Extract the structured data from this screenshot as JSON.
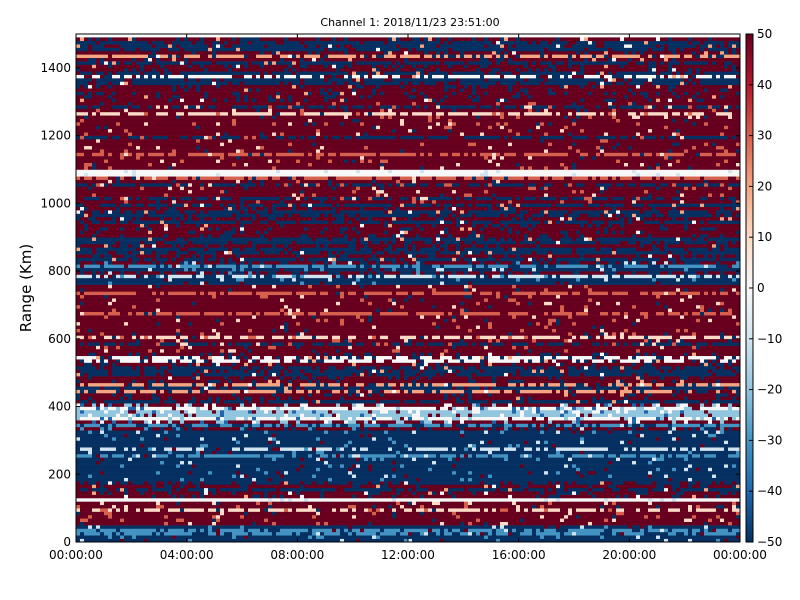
{
  "chart_data": {
    "type": "heatmap",
    "title": "Channel 1: 2018/11/23 23:51:00",
    "xlabel": "",
    "ylabel": "Range (Km)",
    "xlim": [
      "00:00:00",
      "00:00:00 (+24h)"
    ],
    "x_tick_labels": [
      "00:00:00",
      "04:00:00",
      "08:00:00",
      "12:00:00",
      "16:00:00",
      "20:00:00",
      "00:00:00"
    ],
    "ylim": [
      0,
      1500
    ],
    "y_tick_labels": [
      "0",
      "200",
      "400",
      "600",
      "800",
      "1000",
      "1200",
      "1400"
    ],
    "colorbar": {
      "range": [
        -50,
        50
      ],
      "ticks": [
        "50",
        "40",
        "30",
        "20",
        "10",
        "0",
        "−10",
        "−20",
        "−30",
        "−40",
        "−50"
      ],
      "colormap": "RdBu_r",
      "colors": [
        "#053061",
        "#2166ac",
        "#4393c3",
        "#92c5de",
        "#d1e5f0",
        "#f7f7f7",
        "#fddbc7",
        "#f4a582",
        "#d6604d",
        "#b2182b",
        "#67001f"
      ]
    },
    "notes_range_bands": [
      {
        "range_km": [
          0,
          50
        ],
        "dominant": "blue"
      },
      {
        "range_km": [
          50,
          120
        ],
        "dominant": "red"
      },
      {
        "range_km": [
          130,
          180
        ],
        "dominant": "blue/red mix"
      },
      {
        "range_km": [
          180,
          350
        ],
        "dominant": "blue"
      },
      {
        "range_km": [
          350,
          410
        ],
        "dominant": "light blue / white"
      },
      {
        "range_km": [
          410,
          560
        ],
        "dominant": "blue/red mix"
      },
      {
        "range_km": [
          560,
          760
        ],
        "dominant": "red"
      },
      {
        "range_km": [
          760,
          830
        ],
        "dominant": "blue"
      },
      {
        "range_km": [
          830,
          1000
        ],
        "dominant": "red/blue mix"
      },
      {
        "range_km": [
          1000,
          1080
        ],
        "dominant": "red"
      },
      {
        "range_km": [
          1080,
          1100
        ],
        "dominant": "white"
      },
      {
        "range_km": [
          1100,
          1300
        ],
        "dominant": "red"
      },
      {
        "range_km": [
          1300,
          1490
        ],
        "dominant": "red/blue mix"
      }
    ]
  }
}
